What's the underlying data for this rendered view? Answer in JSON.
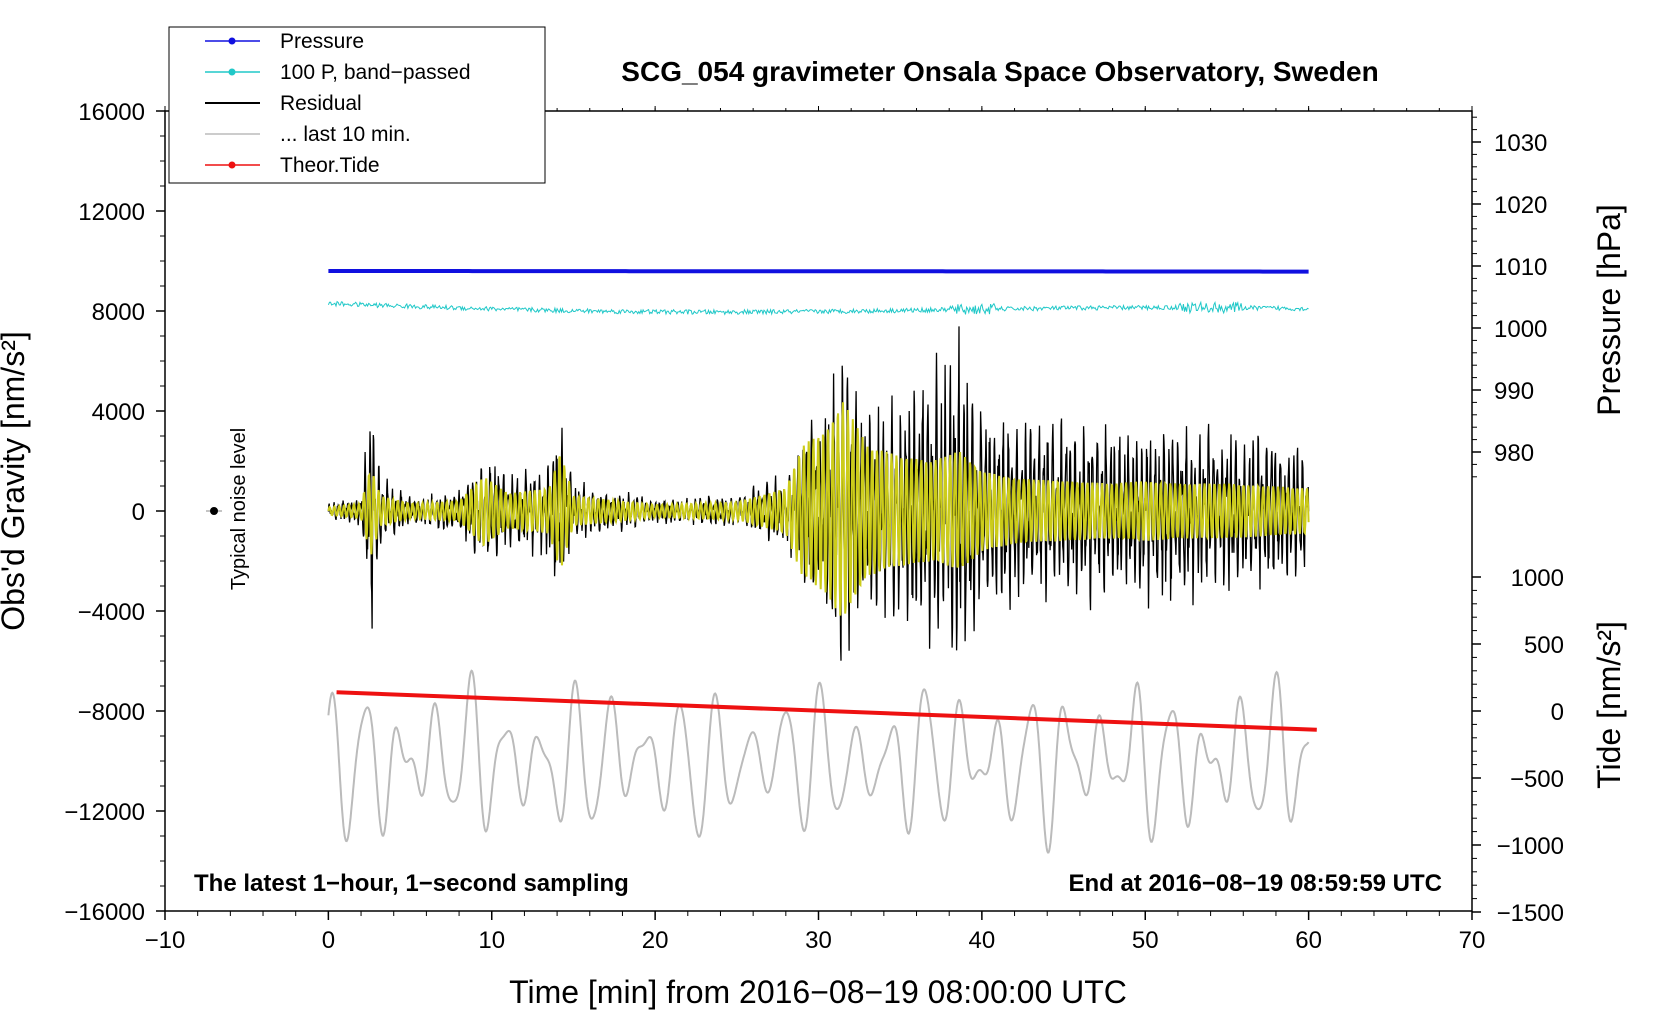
{
  "chart_data": {
    "type": "line",
    "title": "SCG_054 gravimeter Onsala Space Observatory, Sweden",
    "xlabel": "Time [min] from 2016−08−19 08:00:00 UTC",
    "ylabel_left": "Obs'd Gravity [nm/s²]",
    "ylabel_right_pressure": "Pressure [hPa]",
    "ylabel_right_tide": "Tide [nm/s²]",
    "xlim": [
      -10,
      70
    ],
    "ylim": [
      -16000,
      16000
    ],
    "x_ticks": [
      -10,
      0,
      10,
      20,
      30,
      40,
      50,
      60,
      70
    ],
    "x_tick_labels": [
      "−10",
      "0",
      "10",
      "20",
      "30",
      "40",
      "50",
      "60",
      "70"
    ],
    "y_ticks": [
      16000,
      12000,
      8000,
      4000,
      0,
      -4000,
      -8000,
      -12000,
      -16000
    ],
    "y_tick_labels": [
      "16000",
      "12000",
      "8000",
      "4000",
      "0",
      "−4000",
      "−8000",
      "−12000",
      "−16000"
    ],
    "pressure_ticks": [
      1030,
      1020,
      1010,
      1000,
      990,
      980
    ],
    "pressure_tick_labels": [
      "1030",
      "1020",
      "1010",
      "1000",
      "990",
      "980"
    ],
    "tide_ticks": [
      1000,
      500,
      0,
      -500,
      -1000,
      -1500
    ],
    "tide_tick_labels": [
      "1000",
      "500",
      "0",
      "−500",
      "−1000",
      "−1500"
    ],
    "legend": [
      {
        "label": "Pressure",
        "color": "#1010e0",
        "marker": true
      },
      {
        "label": "100 P, band−passed",
        "color": "#20c8c8",
        "marker": true
      },
      {
        "label": "Residual",
        "color": "#000000",
        "marker": false
      },
      {
        "label": "... last 10 min.",
        "color": "#bbbbbb",
        "marker": false
      },
      {
        "label": "Theor.Tide",
        "color": "#ee1111",
        "marker": true
      }
    ],
    "annotations": {
      "noise_label": "Typical noise level",
      "bottom_left": "The latest 1−hour, 1−second sampling",
      "bottom_right": "End at 2016−08−19 08:59:59 UTC"
    },
    "noise_point": {
      "x": -7,
      "y": 0
    },
    "series": [
      {
        "name": "Pressure",
        "color": "#1010e0",
        "axis": "pressure",
        "x_range": [
          0,
          60
        ],
        "start_hpa": 1009.2,
        "end_hpa": 1009.1
      },
      {
        "name": "100 P, band−passed",
        "color": "#20c8c8",
        "axis": "gravity",
        "x_range": [
          0,
          60
        ],
        "start": 8300,
        "end": 7900
      },
      {
        "name": "Residual",
        "color": "#000000",
        "axis": "gravity",
        "x_range": [
          0,
          60
        ],
        "envelope_x": [
          0,
          2,
          2.6,
          3.2,
          5,
          8,
          9.5,
          11,
          13.5,
          14.2,
          15,
          20,
          25,
          28,
          29,
          30.5,
          31.5,
          33,
          35,
          37,
          38.6,
          40,
          42,
          45,
          48,
          50,
          52,
          55,
          60
        ],
        "envelope_amp": [
          300,
          600,
          5000,
          1500,
          600,
          900,
          2500,
          1400,
          2000,
          3800,
          1200,
          500,
          700,
          1500,
          3000,
          4500,
          6500,
          4000,
          4800,
          5500,
          7500,
          4500,
          3900,
          3800,
          3500,
          3800,
          3600,
          3500,
          2800
        ]
      },
      {
        "name": "Band-passed residual",
        "color": "#cccc1a",
        "axis": "gravity",
        "x_range": [
          0,
          60
        ],
        "envelope_x": [
          0,
          2,
          2.6,
          3.2,
          5,
          8,
          9.5,
          11,
          13.5,
          14.2,
          15,
          20,
          25,
          28,
          29,
          30.5,
          31.5,
          33,
          35,
          37,
          38.6,
          40,
          42,
          45,
          48,
          50,
          52,
          55,
          60
        ],
        "envelope_amp": [
          150,
          300,
          1800,
          600,
          300,
          400,
          1400,
          700,
          900,
          2400,
          600,
          250,
          350,
          900,
          2600,
          3300,
          4400,
          2600,
          2200,
          2000,
          2400,
          1600,
          1300,
          1200,
          1100,
          1200,
          1100,
          1100,
          900
        ]
      },
      {
        "name": "... last 10 min.",
        "color": "#bbbbbb",
        "axis": "gravity",
        "x_range": [
          0,
          60
        ],
        "center": -10000,
        "amplitude": 2800,
        "periods_in_window": 28
      },
      {
        "name": "Theor.Tide",
        "color": "#ee1111",
        "axis": "tide",
        "x_range": [
          0.5,
          60.5
        ],
        "start": 140,
        "end": -140
      }
    ]
  }
}
